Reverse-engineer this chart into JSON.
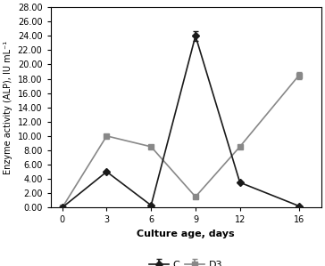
{
  "x": [
    0,
    3,
    6,
    9,
    12,
    16
  ],
  "C_y": [
    0.0,
    5.0,
    0.3,
    24.0,
    3.5,
    0.2
  ],
  "D3_y": [
    0.0,
    10.0,
    8.5,
    1.5,
    8.5,
    18.5
  ],
  "C_yerr": [
    0.0,
    0.0,
    0.0,
    0.7,
    0.0,
    0.0
  ],
  "D3_yerr": [
    0.0,
    0.0,
    0.0,
    0.0,
    0.0,
    0.5
  ],
  "C_color": "#1a1a1a",
  "D3_color": "#888888",
  "xlabel": "Culture age, days",
  "ylabel": "Enzyme activity (ALP), IU mL⁻¹",
  "ylim": [
    0,
    28
  ],
  "yticks": [
    0.0,
    2.0,
    4.0,
    6.0,
    8.0,
    10.0,
    12.0,
    14.0,
    16.0,
    18.0,
    20.0,
    22.0,
    24.0,
    26.0,
    28.0
  ],
  "xticks": [
    0,
    3,
    6,
    9,
    12,
    16
  ],
  "legend_C": "C",
  "legend_D3": "D3",
  "C_marker": "D",
  "D3_marker": "s",
  "linewidth": 1.2,
  "markersize": 4.5,
  "capsize": 2.5
}
